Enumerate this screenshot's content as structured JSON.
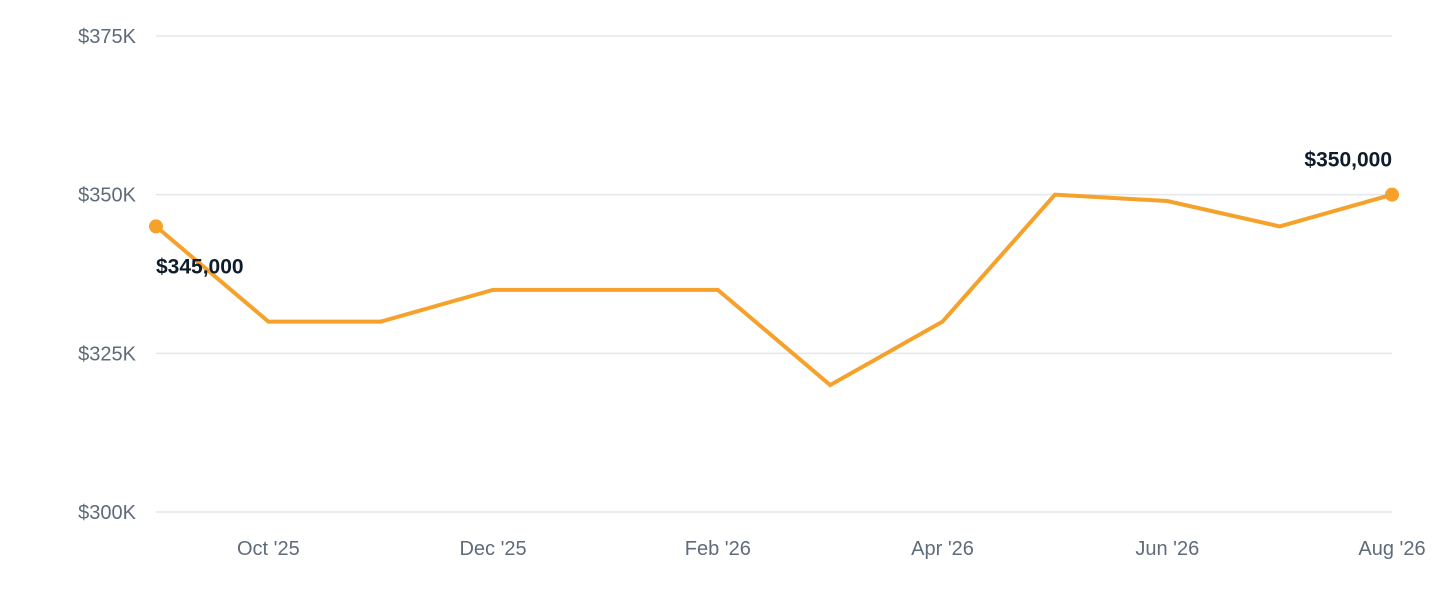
{
  "chart_data": {
    "type": "line",
    "x": [
      "2025-09",
      "2025-10",
      "2025-11",
      "2025-12",
      "2026-01",
      "2026-02",
      "2026-03",
      "2026-04",
      "2026-05",
      "2026-06",
      "2026-07",
      "2026-08"
    ],
    "series": [
      {
        "values": [
          345000,
          330000,
          330000,
          335000,
          335000,
          335000,
          320000,
          330000,
          350000,
          349000,
          345000,
          350000
        ],
        "color": "#f5a12a"
      }
    ],
    "x_ticks": [
      {
        "x": "2025-10",
        "label": "Oct '25"
      },
      {
        "x": "2025-12",
        "label": "Dec '25"
      },
      {
        "x": "2026-02",
        "label": "Feb '26"
      },
      {
        "x": "2026-04",
        "label": "Apr '26"
      },
      {
        "x": "2026-06",
        "label": "Jun '26"
      },
      {
        "x": "2026-08",
        "label": "Aug '26"
      }
    ],
    "y_ticks": [
      {
        "value": 375000,
        "label": "$375K"
      },
      {
        "value": 350000,
        "label": "$350K"
      },
      {
        "value": 325000,
        "label": "$325K"
      },
      {
        "value": 300000,
        "label": "$300K"
      }
    ],
    "ylim": [
      300000,
      375000
    ],
    "annotations": [
      {
        "x": "2025-09",
        "label": "$345,000"
      },
      {
        "x": "2026-08",
        "label": "$350,000"
      }
    ],
    "grid": true,
    "legend": "none",
    "title": "",
    "xlabel": "",
    "ylabel": ""
  }
}
